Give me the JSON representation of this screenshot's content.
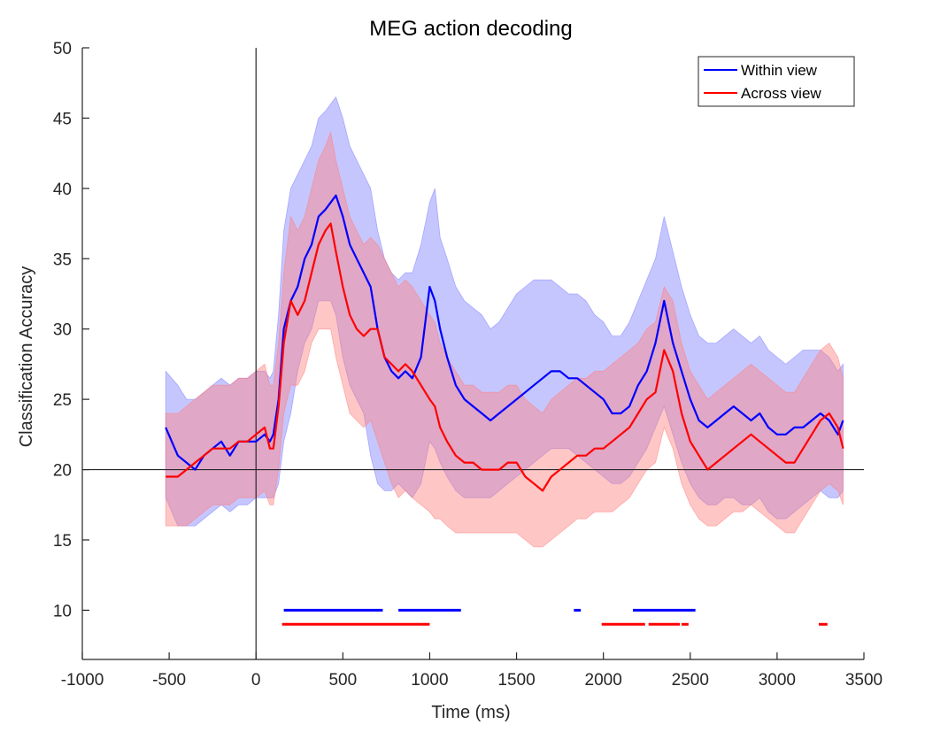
{
  "chart_data": {
    "type": "line",
    "title": "MEG action decoding",
    "xlabel": "Time (ms)",
    "ylabel": "Classification Accuracy",
    "xlim": [
      -1000,
      3500
    ],
    "ylim": [
      6.5,
      50
    ],
    "xticks": [
      -1000,
      -500,
      0,
      500,
      1000,
      1500,
      2000,
      2500,
      3000,
      3500
    ],
    "xtick_labels": [
      "-1000",
      "-500",
      "0",
      "500",
      "1000",
      "1500",
      "2000",
      "2500",
      "3000",
      "3500"
    ],
    "yticks": [
      10,
      15,
      20,
      25,
      30,
      35,
      40,
      45,
      50
    ],
    "ytick_labels": [
      "10",
      "15",
      "20",
      "25",
      "30",
      "35",
      "40",
      "45",
      "50"
    ],
    "reference_lines": {
      "chance_level_y": 20,
      "stimulus_onset_x": 0
    },
    "legend": {
      "placement": "top-right",
      "entries": [
        "Within view",
        "Across view"
      ]
    },
    "series": [
      {
        "name": "Within view",
        "color": "#0000ff",
        "band_color": "#8080ff",
        "x": [
          -520,
          -450,
          -400,
          -350,
          -300,
          -250,
          -200,
          -150,
          -100,
          -50,
          0,
          50,
          80,
          100,
          130,
          160,
          200,
          240,
          280,
          320,
          360,
          400,
          430,
          460,
          500,
          540,
          580,
          620,
          660,
          700,
          740,
          780,
          820,
          860,
          900,
          950,
          1000,
          1030,
          1060,
          1100,
          1150,
          1200,
          1250,
          1300,
          1350,
          1400,
          1450,
          1500,
          1550,
          1600,
          1650,
          1700,
          1750,
          1800,
          1850,
          1900,
          1950,
          2000,
          2050,
          2100,
          2150,
          2200,
          2250,
          2300,
          2350,
          2400,
          2450,
          2500,
          2550,
          2600,
          2650,
          2700,
          2750,
          2800,
          2850,
          2900,
          2950,
          3000,
          3050,
          3100,
          3150,
          3200,
          3250,
          3300,
          3350,
          3380
        ],
        "values": [
          23,
          21,
          20.5,
          20,
          21,
          21.5,
          22,
          21,
          22,
          22,
          22,
          22.5,
          22,
          22.5,
          25,
          30,
          32,
          33,
          35,
          36,
          38,
          38.5,
          39,
          39.5,
          38,
          36,
          35,
          34,
          33,
          30,
          28,
          27,
          26.5,
          27,
          26.5,
          28,
          33,
          32,
          30,
          28,
          26,
          25,
          24.5,
          24,
          23.5,
          24,
          24.5,
          25,
          25.5,
          26,
          26.5,
          27,
          27,
          26.5,
          26.5,
          26,
          25.5,
          25,
          24,
          24,
          24.5,
          26,
          27,
          29,
          32,
          29,
          27,
          25,
          23.5,
          23,
          23.5,
          24,
          24.5,
          24,
          23.5,
          24,
          23,
          22.5,
          22.5,
          23,
          23,
          23.5,
          24,
          23.5,
          22.5,
          23.5
        ],
        "lower": [
          18,
          16,
          16,
          16,
          16.5,
          17,
          17.5,
          17,
          17.5,
          17.5,
          18,
          18,
          18,
          18,
          19,
          22,
          24,
          27,
          29,
          30,
          32,
          32,
          32,
          31,
          28,
          26,
          25,
          24,
          21,
          19,
          18.5,
          18.5,
          19,
          18.5,
          18,
          19,
          22,
          21.5,
          20.5,
          19.5,
          18.5,
          18,
          18,
          18,
          18,
          18.5,
          19,
          19.5,
          20,
          20.5,
          21,
          21.5,
          21.5,
          21.5,
          21,
          20.5,
          20,
          19.5,
          19,
          19,
          19.5,
          20.5,
          21.5,
          23,
          24.5,
          22.5,
          20.5,
          19,
          18,
          17.5,
          17.5,
          18,
          18,
          17.5,
          17.5,
          18,
          17,
          16.5,
          16.5,
          17,
          17.5,
          18,
          18.5,
          18,
          18,
          18.5
        ],
        "upper": [
          27,
          26,
          25,
          25,
          25.5,
          26,
          26.5,
          26,
          26.5,
          26.5,
          27,
          27,
          26.5,
          27,
          31,
          37,
          40,
          41,
          42,
          43,
          45,
          45.5,
          46,
          46.5,
          45,
          43,
          42,
          41,
          40,
          37,
          35,
          34,
          33.5,
          34,
          34,
          36,
          39,
          40,
          36.5,
          35,
          33,
          32,
          31.5,
          31,
          30,
          30.5,
          31.5,
          32.5,
          33,
          33.5,
          33.5,
          33.5,
          33,
          32.5,
          32.5,
          32,
          31,
          30.5,
          29.5,
          29.5,
          30.5,
          32,
          33.5,
          35,
          38,
          35.5,
          33,
          31,
          29.5,
          29,
          29,
          29.5,
          30,
          29.5,
          29,
          29.5,
          28.5,
          28,
          27.5,
          28,
          28.5,
          28.5,
          28.5,
          28,
          27,
          27.5
        ]
      },
      {
        "name": "Across view",
        "color": "#ff0000",
        "band_color": "#ff8080",
        "x": [
          -520,
          -450,
          -400,
          -350,
          -300,
          -250,
          -200,
          -150,
          -100,
          -50,
          0,
          50,
          80,
          100,
          130,
          160,
          200,
          240,
          280,
          320,
          360,
          400,
          430,
          460,
          500,
          540,
          580,
          620,
          660,
          700,
          740,
          780,
          820,
          860,
          900,
          950,
          1000,
          1030,
          1060,
          1100,
          1150,
          1200,
          1250,
          1300,
          1350,
          1400,
          1450,
          1500,
          1550,
          1600,
          1650,
          1700,
          1750,
          1800,
          1850,
          1900,
          1950,
          2000,
          2050,
          2100,
          2150,
          2200,
          2250,
          2300,
          2350,
          2400,
          2450,
          2500,
          2550,
          2600,
          2650,
          2700,
          2750,
          2800,
          2850,
          2900,
          2950,
          3000,
          3050,
          3100,
          3150,
          3200,
          3250,
          3300,
          3350,
          3380
        ],
        "values": [
          19.5,
          19.5,
          20,
          20.5,
          21,
          21.5,
          21.5,
          21.5,
          22,
          22,
          22.5,
          23,
          21.5,
          21.5,
          24.5,
          29,
          32,
          31,
          32,
          34,
          36,
          37,
          37.5,
          35.5,
          33,
          31,
          30,
          29.5,
          30,
          30,
          28,
          27.5,
          27,
          27.5,
          27,
          26,
          25,
          24.5,
          23,
          22,
          21,
          20.5,
          20.5,
          20,
          20,
          20,
          20.5,
          20.5,
          19.5,
          19,
          18.5,
          19.5,
          20,
          20.5,
          21,
          21,
          21.5,
          21.5,
          22,
          22.5,
          23,
          24,
          25,
          25.5,
          28.5,
          27,
          24,
          22,
          21,
          20,
          20.5,
          21,
          21.5,
          22,
          22.5,
          22,
          21.5,
          21,
          20.5,
          20.5,
          21.5,
          22.5,
          23.5,
          24,
          23,
          21.5
        ],
        "lower": [
          16,
          16,
          16,
          16.5,
          17,
          17.5,
          17.5,
          17.5,
          18,
          18,
          18,
          18.5,
          17.5,
          17.5,
          20,
          24,
          26,
          26,
          27,
          29,
          30,
          30,
          30,
          28,
          26,
          24,
          23.5,
          23,
          23.5,
          22,
          20.5,
          19,
          18,
          18.5,
          18,
          17.5,
          17,
          16.5,
          16.5,
          16,
          15.5,
          15.5,
          15.5,
          15.5,
          15.5,
          15.5,
          15.5,
          15.5,
          15,
          14.5,
          14.5,
          15,
          15.5,
          16,
          16.5,
          16.5,
          17,
          17,
          17,
          17.5,
          18,
          19,
          20,
          20.5,
          23,
          21.5,
          19,
          17.5,
          16.5,
          16,
          16,
          16.5,
          17,
          17,
          17.5,
          17,
          16.5,
          16,
          15.5,
          15.5,
          16.5,
          17.5,
          18.5,
          19,
          18.5,
          17.5
        ],
        "upper": [
          24,
          24,
          24.5,
          25,
          25.5,
          26,
          26,
          26,
          26.5,
          26.5,
          27,
          27.5,
          26,
          26,
          29,
          34,
          38,
          37,
          38,
          40,
          42,
          43,
          44,
          42,
          40,
          38,
          37,
          36,
          36.5,
          36,
          35,
          34,
          33,
          33.5,
          33,
          32,
          31,
          30.5,
          29,
          28,
          27,
          26,
          26,
          25.5,
          25.5,
          25.5,
          26,
          26,
          25,
          24.5,
          24,
          25,
          25.5,
          26,
          26.5,
          26.5,
          27,
          27,
          27.5,
          28,
          28.5,
          29,
          30,
          30.5,
          33,
          32,
          29,
          27,
          26,
          25,
          25.5,
          26,
          26.5,
          27,
          27.5,
          27,
          26.5,
          26,
          25.5,
          25.5,
          26.5,
          27.5,
          28.5,
          29,
          28,
          26.5
        ]
      }
    ],
    "significance_markers": [
      {
        "series": "Within view",
        "y": 10,
        "intervals": [
          [
            160,
            730
          ],
          [
            820,
            1180
          ],
          [
            1830,
            1870
          ],
          [
            2170,
            2530
          ]
        ]
      },
      {
        "series": "Across view",
        "y": 9,
        "intervals": [
          [
            150,
            1000
          ],
          [
            1990,
            2240
          ],
          [
            2260,
            2440
          ],
          [
            2450,
            2490
          ],
          [
            3240,
            3290
          ]
        ]
      }
    ]
  }
}
